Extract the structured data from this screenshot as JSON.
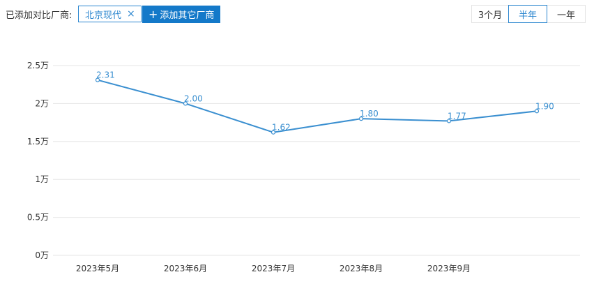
{
  "toolbar": {
    "label": "已添加对比厂商:",
    "selected_maker": "北京现代",
    "remove_glyph": "×",
    "add_button_label": "添加其它厂商",
    "periods": [
      "3个月",
      "半年",
      "一年"
    ],
    "active_period": "半年"
  },
  "colors": {
    "accent": "#2b86cf",
    "button_bg": "#1479c9",
    "line": "#3a8fd0",
    "grid": "#e6e6e6"
  },
  "chart_data": {
    "type": "line",
    "categories": [
      "2023年5月",
      "2023年6月",
      "2023年7月",
      "2023年8月",
      "2023年9月",
      ""
    ],
    "x_tick_labels": [
      "2023年5月",
      "2023年6月",
      "2023年7月",
      "2023年8月",
      "2023年9月"
    ],
    "series": [
      {
        "values": [
          2.31,
          2.0,
          1.62,
          1.8,
          1.77,
          1.9
        ],
        "value_labels": [
          "2.31",
          "2.00",
          "1.62",
          "1.80",
          "1.77",
          "1.90"
        ]
      }
    ],
    "y_ticks": [
      0,
      0.5,
      1,
      1.5,
      2,
      2.5
    ],
    "y_tick_labels": [
      "0万",
      "0.5万",
      "1万",
      "1.5万",
      "2万",
      "2.5万"
    ],
    "ylim": [
      0,
      2.5
    ],
    "grid": true,
    "title": "",
    "xlabel": "",
    "ylabel": ""
  }
}
